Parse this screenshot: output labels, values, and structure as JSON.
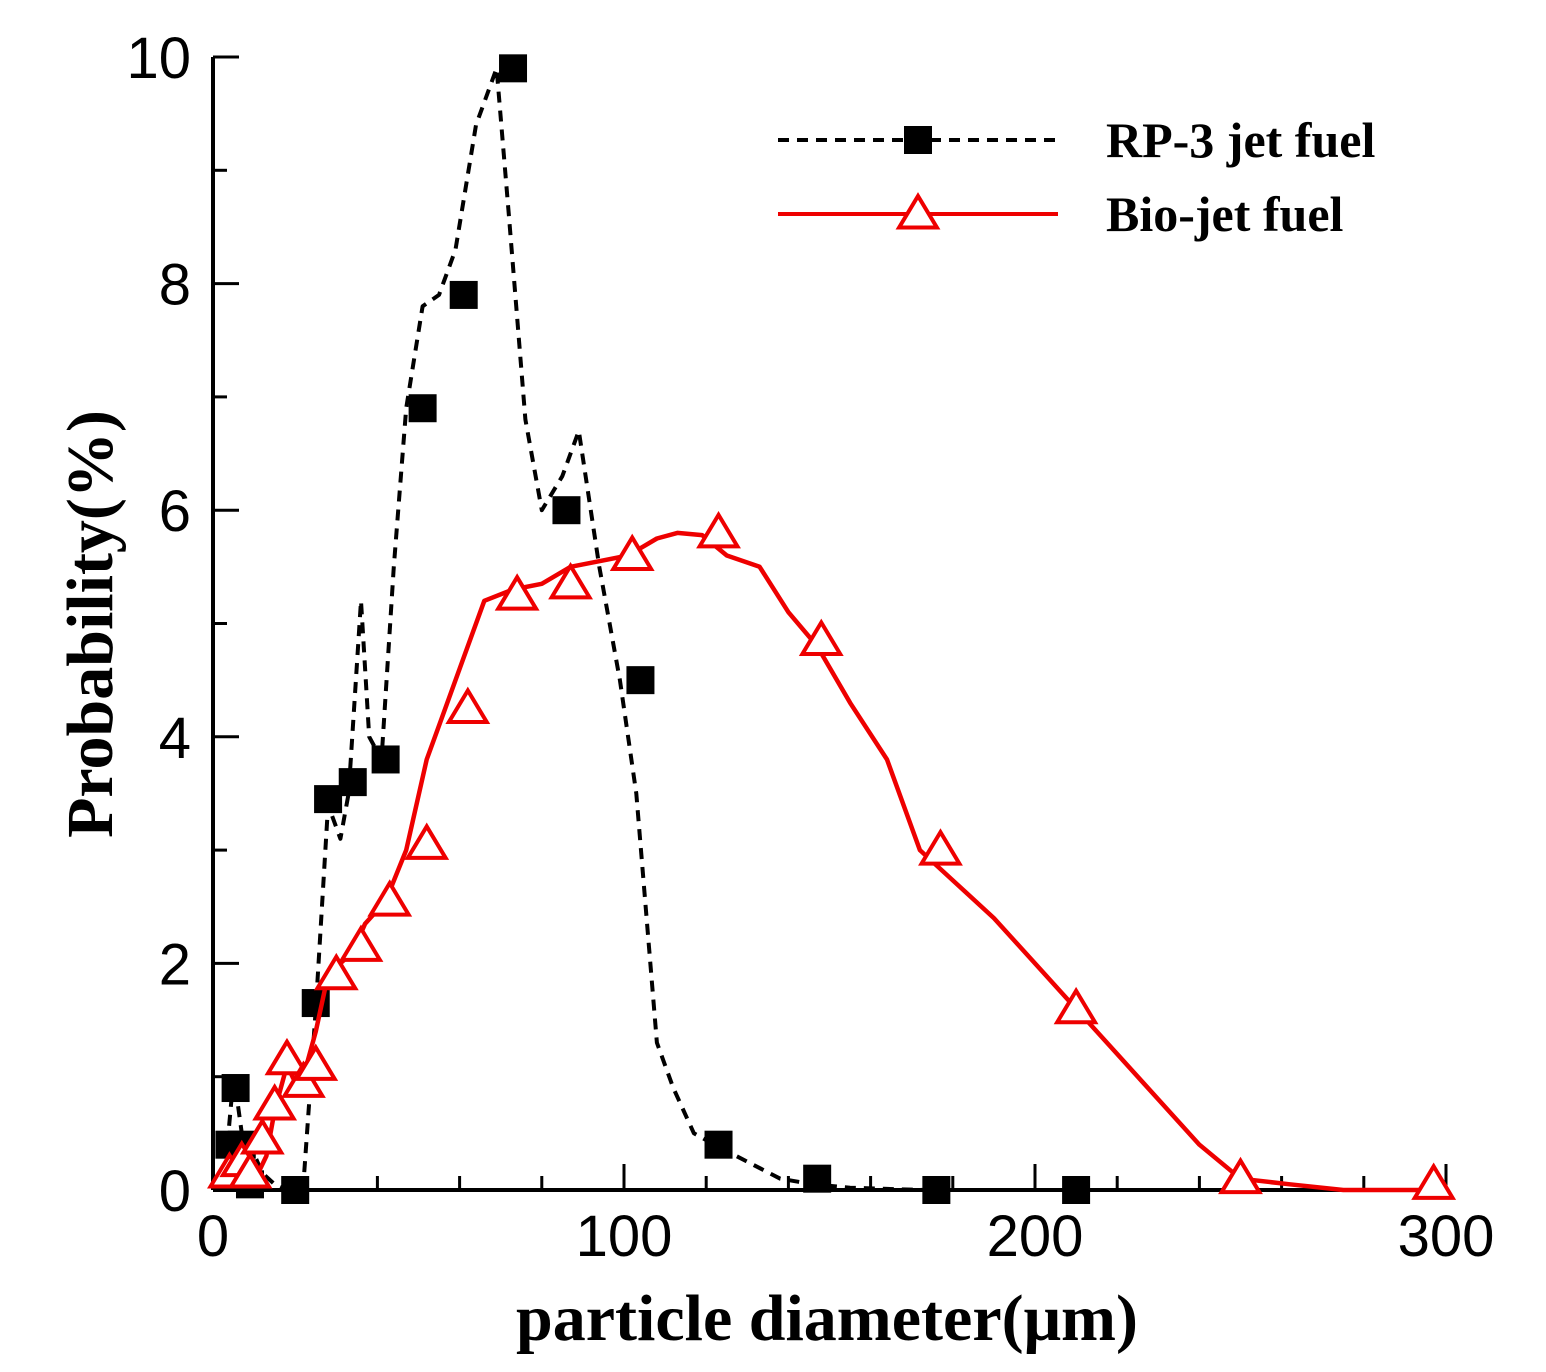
{
  "chart_data": {
    "type": "line",
    "xlabel": "particle diameter(μm)",
    "ylabel": "Probability(%)",
    "xlim": [
      0,
      300
    ],
    "ylim": [
      0,
      10
    ],
    "x_ticks": [
      0,
      100,
      200,
      300
    ],
    "y_ticks": [
      0,
      2,
      4,
      6,
      8,
      10
    ],
    "x_minor_step": 20,
    "y_minor_step": 1,
    "grid": false,
    "legend_position": "top-right",
    "series": [
      {
        "name": "RP-3 jet fuel",
        "color": "#000000",
        "line_style": "dashed",
        "marker": "filled-square",
        "curve_x": [
          3.5,
          4.5,
          5.5,
          7,
          9,
          12,
          15,
          18,
          20,
          22,
          25,
          28,
          31,
          33,
          36,
          38,
          41,
          44,
          47,
          51,
          55,
          59,
          64,
          69,
          72,
          76,
          80,
          85,
          89,
          94,
          99,
          103,
          108,
          112,
          117,
          122,
          130,
          138,
          146,
          155,
          164,
          173,
          186,
          200,
          208,
          225,
          250,
          275,
          297
        ],
        "curve_y": [
          0.4,
          0.8,
          0.9,
          0.5,
          0.4,
          0.15,
          0.05,
          0.0,
          0.0,
          0.05,
          1.6,
          3.4,
          3.1,
          3.5,
          5.2,
          4.0,
          3.8,
          5.5,
          6.9,
          7.8,
          7.9,
          8.3,
          9.4,
          9.9,
          8.6,
          6.8,
          6.0,
          6.3,
          6.7,
          5.5,
          4.5,
          3.5,
          1.3,
          0.9,
          0.5,
          0.4,
          0.25,
          0.1,
          0.05,
          0.02,
          0.01,
          0.0,
          0.0,
          0.0,
          0.0,
          0.0,
          0.0,
          0.0,
          0.0
        ],
        "markers_x": [
          4,
          5.5,
          7,
          9,
          20,
          25,
          28,
          34,
          42,
          51,
          61,
          73,
          86,
          104,
          123,
          147,
          176,
          210
        ],
        "markers_y": [
          0.4,
          0.9,
          0.4,
          0.05,
          0.0,
          1.65,
          3.45,
          3.6,
          3.8,
          6.9,
          7.9,
          9.9,
          6.0,
          4.5,
          0.4,
          0.1,
          0.0,
          0.0
        ]
      },
      {
        "name": "Bio-jet fuel",
        "color": "#ee0000",
        "line_style": "solid",
        "marker": "open-triangle",
        "curve_x": [
          3,
          5,
          7,
          9,
          11,
          13,
          15,
          18,
          20,
          22,
          25,
          28,
          31,
          34,
          37,
          42,
          47,
          52,
          56,
          61,
          66,
          73,
          80,
          87,
          94,
          101,
          108,
          113,
          119,
          125,
          133,
          140,
          147,
          155,
          164,
          172,
          181,
          190,
          200,
          210,
          220,
          230,
          240,
          250,
          262,
          275,
          287,
          298
        ],
        "curve_y": [
          0.1,
          0.2,
          0.25,
          0.2,
          0.15,
          0.3,
          0.7,
          1.1,
          0.95,
          1.0,
          1.4,
          1.9,
          2.0,
          2.1,
          2.35,
          2.55,
          3.0,
          3.8,
          4.2,
          4.7,
          5.2,
          5.3,
          5.35,
          5.5,
          5.55,
          5.6,
          5.75,
          5.8,
          5.78,
          5.6,
          5.5,
          5.1,
          4.8,
          4.3,
          3.8,
          3.0,
          2.7,
          2.4,
          2.0,
          1.6,
          1.2,
          0.8,
          0.4,
          0.1,
          0.05,
          0.0,
          0.0,
          0.0
        ],
        "markers_x": [
          4,
          7,
          9,
          12,
          15,
          18,
          22,
          25,
          30,
          36,
          43,
          52,
          62,
          74,
          87,
          102,
          123,
          148,
          177,
          210,
          250,
          297
        ],
        "markers_y": [
          0.15,
          0.25,
          0.15,
          0.45,
          0.75,
          1.15,
          0.95,
          1.1,
          1.9,
          2.15,
          2.55,
          3.05,
          4.25,
          5.25,
          5.35,
          5.6,
          5.8,
          4.85,
          3.0,
          1.6,
          0.1,
          0.05
        ]
      }
    ]
  }
}
